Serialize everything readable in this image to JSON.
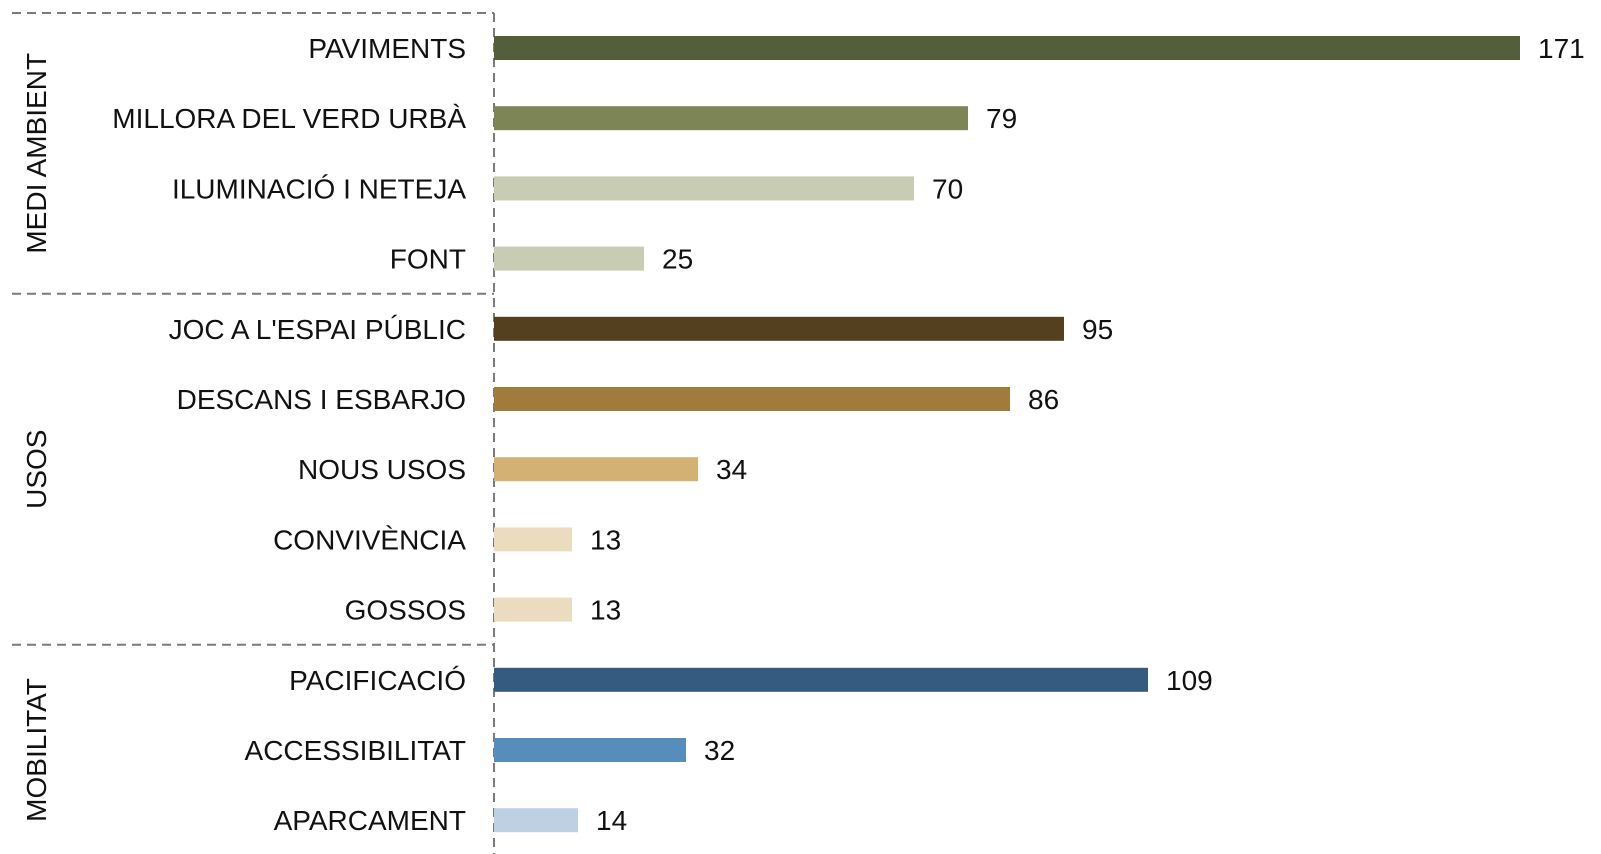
{
  "chart_data": {
    "type": "bar",
    "orientation": "horizontal",
    "title": "",
    "xlabel": "",
    "ylabel": "",
    "grid": false,
    "legend": "none",
    "xlim": [
      0,
      171
    ],
    "groups": [
      {
        "name": "MEDI AMBIENT",
        "items": [
          {
            "label": "PAVIMENTS",
            "value": 171,
            "color": "#555E3B"
          },
          {
            "label": "MILLORA DEL VERD URBÀ",
            "value": 79,
            "color": "#7D8556"
          },
          {
            "label": "ILUMINACIÓ I NETEJA",
            "value": 70,
            "color": "#C8CCB3"
          },
          {
            "label": "FONT",
            "value": 25,
            "color": "#C8CCB3"
          }
        ]
      },
      {
        "name": "USOS",
        "items": [
          {
            "label": "JOC A L'ESPAI PÚBLIC",
            "value": 95,
            "color": "#543F1F"
          },
          {
            "label": "DESCANS I ESBARJO",
            "value": 86,
            "color": "#A07C3C"
          },
          {
            "label": "NOUS USOS",
            "value": 34,
            "color": "#D3B074"
          },
          {
            "label": "CONVIVÈNCIA",
            "value": 13,
            "color": "#EBDCC0"
          },
          {
            "label": "GOSSOS",
            "value": 13,
            "color": "#EBDCC0"
          }
        ]
      },
      {
        "name": "MOBILITAT",
        "items": [
          {
            "label": "PACIFICACIÓ",
            "value": 109,
            "color": "#355C7E"
          },
          {
            "label": "ACCESSIBILITAT",
            "value": 32,
            "color": "#568DBB"
          },
          {
            "label": "APARCAMENT",
            "value": 14,
            "color": "#BED0E2"
          }
        ]
      }
    ]
  }
}
